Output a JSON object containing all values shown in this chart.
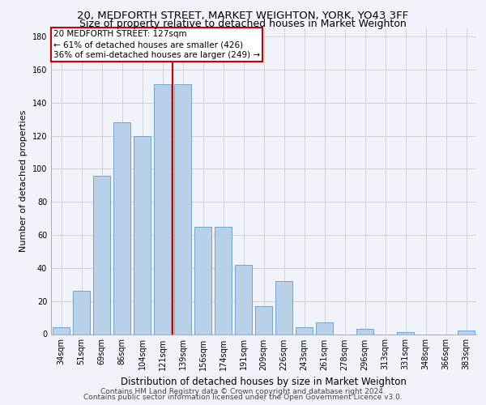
{
  "title": "20, MEDFORTH STREET, MARKET WEIGHTON, YORK, YO43 3FF",
  "subtitle": "Size of property relative to detached houses in Market Weighton",
  "xlabel": "Distribution of detached houses by size in Market Weighton",
  "ylabel": "Number of detached properties",
  "categories": [
    "34sqm",
    "51sqm",
    "69sqm",
    "86sqm",
    "104sqm",
    "121sqm",
    "139sqm",
    "156sqm",
    "174sqm",
    "191sqm",
    "209sqm",
    "226sqm",
    "243sqm",
    "261sqm",
    "278sqm",
    "296sqm",
    "313sqm",
    "331sqm",
    "348sqm",
    "366sqm",
    "383sqm"
  ],
  "values": [
    4,
    26,
    96,
    128,
    120,
    151,
    151,
    65,
    65,
    42,
    17,
    32,
    4,
    7,
    0,
    3,
    0,
    1,
    0,
    0,
    2
  ],
  "bar_color": "#b8d0e8",
  "bar_edge_color": "#6699cc",
  "vline_x_index": 5,
  "vline_color": "#cc0000",
  "annotation_label": "20 MEDFORTH STREET: 127sqm",
  "annotation_line1": "← 61% of detached houses are smaller (426)",
  "annotation_line2": "36% of semi-detached houses are larger (249) →",
  "annotation_box_facecolor": "#ffffff",
  "annotation_box_edgecolor": "#cc0000",
  "ylim": [
    0,
    185
  ],
  "yticks": [
    0,
    20,
    40,
    60,
    80,
    100,
    120,
    140,
    160,
    180
  ],
  "background_color": "#f0f4fa",
  "grid_color": "#cccccc",
  "footer1": "Contains HM Land Registry data © Crown copyright and database right 2024.",
  "footer2": "Contains public sector information licensed under the Open Government Licence v3.0.",
  "title_fontsize": 9.5,
  "subtitle_fontsize": 9,
  "xlabel_fontsize": 8.5,
  "ylabel_fontsize": 8,
  "tick_fontsize": 7,
  "annotation_fontsize": 7.5,
  "footer_fontsize": 6.5
}
